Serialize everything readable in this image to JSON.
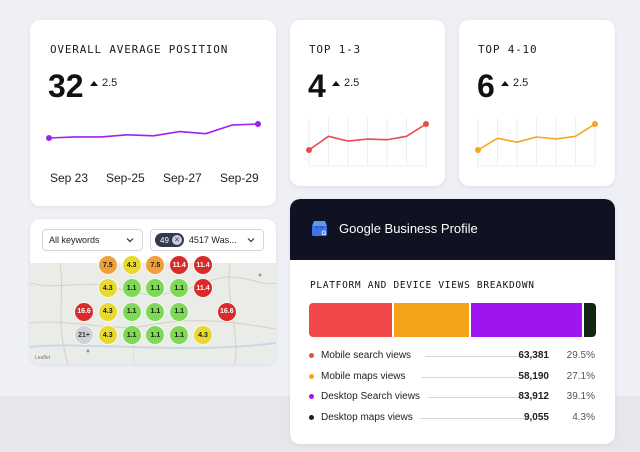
{
  "colors": {
    "purple": "#a020f0",
    "red": "#e84d4d",
    "orange": "#f5a623",
    "dark": "#1a2a14",
    "map_red": "#d92b2b",
    "map_orange": "#f0a03a",
    "map_yellow": "#e7d92e",
    "map_green": "#7ed957",
    "map_gray": "#cfd2d6"
  },
  "position_card": {
    "title": "OVERALL AVERAGE POSITION",
    "value": "32",
    "delta": "2.5",
    "x_labels": [
      "Sep 23",
      "Sep-25",
      "Sep-27",
      "Sep-29"
    ],
    "trend": [
      46,
      45,
      45,
      43,
      44,
      40,
      42,
      34,
      33
    ]
  },
  "top13_card": {
    "title": "TOP 1-3",
    "value": "4",
    "delta": "2.5",
    "trend": [
      2.0,
      4.0,
      3.3,
      3.6,
      3.5,
      4.0,
      5.8
    ]
  },
  "top410_card": {
    "title": "TOP 4-10",
    "value": "6",
    "delta": "2.5",
    "trend": [
      2.0,
      3.8,
      3.2,
      4.0,
      3.7,
      4.1,
      6.0
    ]
  },
  "map_card": {
    "keyword_select": "All keywords",
    "location_count": "49",
    "location_select": "4517 Was...",
    "credit": "Leaflet",
    "grid": [
      [
        null,
        "7.5",
        "4.3",
        "7.5",
        "11.4",
        "11.4",
        null
      ],
      [
        null,
        "4.3",
        "1.1",
        "1.1",
        "1.1",
        "11.4",
        null
      ],
      [
        "16.6",
        "4.3",
        "1.1",
        "1.1",
        "1.1",
        null,
        "16.6"
      ],
      [
        "21+",
        "4.3",
        "1.1",
        "1.1",
        "1.1",
        "4.3",
        null
      ]
    ]
  },
  "gbp_card": {
    "title": "Google Business Profile",
    "subtitle": "PLATFORM AND DEVICE VIEWS BREAKDOWN",
    "segments": [
      {
        "name": "Mobile search views",
        "value": "63,381",
        "pct": "29.5%",
        "share": 29.5,
        "color": "#f04848"
      },
      {
        "name": "Mobile maps views",
        "value": "58,190",
        "pct": "27.1%",
        "share": 27.1,
        "color": "#f5a31a"
      },
      {
        "name": "Desktop Search views",
        "value": "83,912",
        "pct": "39.1%",
        "share": 39.1,
        "color": "#a014f0"
      },
      {
        "name": "Desktop maps views",
        "value": "9,055",
        "pct": "4.3%",
        "share": 4.3,
        "color": "#132612"
      }
    ]
  }
}
